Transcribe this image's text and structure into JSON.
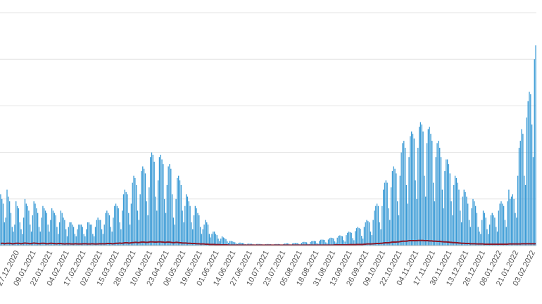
{
  "chart_data": {
    "type": "bar",
    "categories": [
      null,
      null,
      null,
      null,
      null,
      null,
      null,
      null,
      null,
      null,
      null,
      "27.12.2020",
      null,
      null,
      null,
      null,
      null,
      null,
      null,
      null,
      null,
      null,
      null,
      null,
      "09.01.2021",
      null,
      null,
      null,
      null,
      null,
      null,
      null,
      null,
      null,
      null,
      null,
      null,
      "22.01.2021",
      null,
      null,
      null,
      null,
      null,
      null,
      null,
      null,
      null,
      null,
      null,
      null,
      "04.02.2021",
      null,
      null,
      null,
      null,
      null,
      null,
      null,
      null,
      null,
      null,
      null,
      null,
      "17.02.2021",
      null,
      null,
      null,
      null,
      null,
      null,
      null,
      null,
      null,
      null,
      null,
      null,
      "02.03.2021",
      null,
      null,
      null,
      null,
      null,
      null,
      null,
      null,
      null,
      null,
      null,
      null,
      "15.03.2021",
      null,
      null,
      null,
      null,
      null,
      null,
      null,
      null,
      null,
      null,
      null,
      null,
      "28.03.2021",
      null,
      null,
      null,
      null,
      null,
      null,
      null,
      null,
      null,
      null,
      null,
      null,
      "10.04.2021",
      null,
      null,
      null,
      null,
      null,
      null,
      null,
      null,
      null,
      null,
      null,
      null,
      "23.04.2021",
      null,
      null,
      null,
      null,
      null,
      null,
      null,
      null,
      null,
      null,
      null,
      null,
      "06.05.2021",
      null,
      null,
      null,
      null,
      null,
      null,
      null,
      null,
      null,
      null,
      null,
      null,
      "19.05.2021",
      null,
      null,
      null,
      null,
      null,
      null,
      null,
      null,
      null,
      null,
      null,
      null,
      "01.06.2021",
      null,
      null,
      null,
      null,
      null,
      null,
      null,
      null,
      null,
      null,
      null,
      null,
      "14.06.2021",
      null,
      null,
      null,
      null,
      null,
      null,
      null,
      null,
      null,
      null,
      null,
      null,
      "27.06.2021",
      null,
      null,
      null,
      null,
      null,
      null,
      null,
      null,
      null,
      null,
      null,
      null,
      "10.07.2021",
      null,
      null,
      null,
      null,
      null,
      null,
      null,
      null,
      null,
      null,
      null,
      null,
      "23.07.2021",
      null,
      null,
      null,
      null,
      null,
      null,
      null,
      null,
      null,
      null,
      null,
      null,
      "05.08.2021",
      null,
      null,
      null,
      null,
      null,
      null,
      null,
      null,
      null,
      null,
      null,
      null,
      "18.08.2021",
      null,
      null,
      null,
      null,
      null,
      null,
      null,
      null,
      null,
      null,
      null,
      null,
      "31.08.2021",
      null,
      null,
      null,
      null,
      null,
      null,
      null,
      null,
      null,
      null,
      null,
      null,
      "13.09.2021",
      null,
      null,
      null,
      null,
      null,
      null,
      null,
      null,
      null,
      null,
      null,
      null,
      "26.09.2021",
      null,
      null,
      null,
      null,
      null,
      null,
      null,
      null,
      null,
      null,
      null,
      null,
      "09.10.2021",
      null,
      null,
      null,
      null,
      null,
      null,
      null,
      null,
      null,
      null,
      null,
      null,
      "22.10.2021",
      null,
      null,
      null,
      null,
      null,
      null,
      null,
      null,
      null,
      null,
      null,
      null,
      "04.11.2021",
      null,
      null,
      null,
      null,
      null,
      null,
      null,
      null,
      null,
      null,
      null,
      null,
      "17.11.2021",
      null,
      null,
      null,
      null,
      null,
      null,
      null,
      null,
      null,
      null,
      null,
      null,
      "30.11.2021",
      null,
      null,
      null,
      null,
      null,
      null,
      null,
      null,
      null,
      null,
      null,
      null,
      "13.12.2021",
      null,
      null,
      null,
      null,
      null,
      null,
      null,
      null,
      null,
      null,
      null,
      null,
      "26.12.2021",
      null,
      null,
      null,
      null,
      null,
      null,
      null,
      null,
      null,
      null,
      null,
      null,
      "08.01.2022",
      null,
      null,
      null,
      null,
      null,
      null,
      null,
      null,
      null,
      null,
      null,
      null,
      "21.01.2022",
      null,
      null,
      null,
      null,
      null,
      null,
      null,
      null,
      null,
      null,
      null,
      null,
      "03.02.2022",
      null,
      null,
      null,
      null
    ],
    "series": [
      {
        "color": "#3b9bd6",
        "values": [
          22,
          20,
          18,
          10,
          12,
          24,
          21,
          19,
          14,
          8,
          6,
          9,
          19,
          17,
          16,
          10,
          7,
          5,
          12,
          20,
          18,
          17,
          15,
          9,
          6,
          13,
          19,
          18,
          16,
          14,
          8,
          6,
          12,
          17,
          16,
          15,
          14,
          9,
          6,
          11,
          16,
          15,
          14,
          13,
          8,
          5,
          10,
          15,
          14,
          12,
          11,
          7,
          4,
          8,
          10,
          10,
          9,
          8,
          5,
          4,
          7,
          9,
          9,
          9,
          8,
          5,
          4,
          7,
          10,
          10,
          9,
          9,
          5,
          4,
          8,
          11,
          12,
          11,
          11,
          7,
          5,
          9,
          14,
          15,
          14,
          13,
          8,
          6,
          12,
          17,
          18,
          17,
          16,
          10,
          7,
          15,
          22,
          24,
          23,
          22,
          14,
          9,
          18,
          27,
          30,
          29,
          26,
          15,
          11,
          22,
          32,
          34,
          33,
          31,
          19,
          13,
          25,
          38,
          40,
          39,
          36,
          21,
          15,
          28,
          38,
          39,
          37,
          35,
          20,
          14,
          26,
          34,
          35,
          33,
          22,
          12,
          9,
          20,
          29,
          30,
          28,
          26,
          15,
          10,
          17,
          22,
          21,
          19,
          17,
          10,
          7,
          13,
          17,
          16,
          14,
          13,
          8,
          5,
          7,
          9,
          11,
          10,
          9,
          5,
          3.5,
          5,
          6,
          6,
          5,
          4.5,
          3,
          2,
          3,
          4,
          3.5,
          3.2,
          2.8,
          1.8,
          1.2,
          2,
          2,
          1.8,
          1.6,
          1.4,
          0.9,
          0.7,
          1.2,
          1.3,
          1.2,
          1.1,
          1,
          0.6,
          0.5,
          0.8,
          0.9,
          0.8,
          0.8,
          0.7,
          0.5,
          0.4,
          0.7,
          0.8,
          0.7,
          0.7,
          0.6,
          0.4,
          0.3,
          0.6,
          0.7,
          0.7,
          0.6,
          0.6,
          0.4,
          0.3,
          0.6,
          0.7,
          0.7,
          0.7,
          0.6,
          0.4,
          0.3,
          0.7,
          0.9,
          1,
          1,
          0.9,
          0.5,
          0.4,
          0.9,
          1.1,
          1.2,
          1.1,
          1.1,
          0.7,
          0.5,
          1.2,
          1.5,
          1.6,
          1.5,
          1.4,
          0.8,
          0.6,
          1.5,
          1.9,
          2,
          2,
          1.9,
          1.1,
          0.8,
          2,
          2.5,
          2.6,
          2.5,
          2.4,
          1.4,
          1,
          2.6,
          3.2,
          3.4,
          3.3,
          3.1,
          1.8,
          1.3,
          3.4,
          4.2,
          4.4,
          4.2,
          4,
          2.3,
          1.7,
          4.5,
          5.5,
          6,
          5.8,
          5.5,
          3.2,
          2.3,
          6.2,
          7.5,
          8,
          7.6,
          7.2,
          4.2,
          3,
          8,
          10,
          11,
          10.5,
          10,
          6,
          4.5,
          11,
          15,
          17,
          18,
          17,
          10,
          7,
          17,
          24,
          27,
          28,
          27,
          16,
          11,
          25,
          32,
          34,
          33,
          31,
          19,
          13,
          30,
          40,
          44,
          45,
          42,
          26,
          18,
          38,
          47,
          49,
          48,
          46,
          28,
          20,
          42,
          51,
          53,
          52,
          49,
          30,
          21,
          44,
          50,
          51,
          48,
          45,
          27,
          19,
          38,
          44,
          45,
          42,
          38,
          24,
          16,
          32,
          37,
          37,
          35,
          31,
          19,
          13,
          26,
          30,
          29,
          27,
          24,
          15,
          10,
          21,
          24,
          23,
          21,
          18,
          11,
          8,
          16,
          20,
          19,
          17,
          14,
          8,
          6,
          5,
          11,
          15,
          14,
          12,
          7,
          5,
          9,
          13,
          14,
          13,
          12,
          8,
          6,
          15,
          18,
          19,
          18,
          17,
          11,
          8,
          19,
          24,
          20,
          21,
          22,
          20,
          14,
          12,
          30,
          42,
          45,
          50,
          48,
          30,
          26,
          55,
          62,
          66,
          65,
          52,
          38,
          80,
          86
        ]
      },
      {
        "type": "line",
        "color": "#8b1a2b",
        "values": [
          0.9,
          1,
          1,
          0.8,
          0.9,
          1,
          1,
          1,
          0.9,
          0.8,
          0.8,
          0.9,
          1,
          1,
          1,
          0.9,
          0.8,
          0.9,
          1,
          1.1,
          1,
          1,
          0.9,
          0.8,
          0.9,
          1,
          1.1,
          1,
          1,
          0.9,
          0.8,
          0.9,
          1,
          1,
          1,
          0.9,
          0.8,
          0.8,
          0.9,
          1,
          1,
          0.9,
          0.9,
          0.8,
          0.8,
          0.9,
          0.9,
          0.9,
          0.8,
          0.8,
          0.7,
          0.8,
          0.8,
          0.8,
          0.8,
          0.7,
          0.7,
          0.7,
          0.8,
          0.8,
          0.7,
          0.7,
          0.7,
          0.7,
          0.8,
          0.8,
          0.8,
          0.8,
          0.7,
          0.7,
          0.7,
          0.8,
          0.8,
          0.7,
          0.7,
          0.7,
          0.7,
          0.8,
          0.8,
          0.8,
          0.8,
          0.8,
          0.8,
          0.9,
          0.9,
          0.9,
          0.9,
          0.8,
          0.8,
          0.9,
          1,
          1,
          1,
          1.1,
          1,
          1,
          1.1,
          1.2,
          1.2,
          1.2,
          1.1,
          1.1,
          1.2,
          1.3,
          1.3,
          1.4,
          1.4,
          1.3,
          1.3,
          1.4,
          1.5,
          1.5,
          1.5,
          1.4,
          1.4,
          1.4,
          1.5,
          1.6,
          1.6,
          1.6,
          1.5,
          1.5,
          1.5,
          1.6,
          1.6,
          1.6,
          1.5,
          1.5,
          1.4,
          1.4,
          1.5,
          1.5,
          1.5,
          1.4,
          1.3,
          1.3,
          1.3,
          1.4,
          1.4,
          1.3,
          1.2,
          1.2,
          1.1,
          1.1,
          1.1,
          1.1,
          1,
          1,
          1,
          0.9,
          0.9,
          0.9,
          0.9,
          0.8,
          0.8,
          0.8,
          0.7,
          0.7,
          0.7,
          0.7,
          0.6,
          0.6,
          0.6,
          0.5,
          0.5,
          0.5,
          0.5,
          0.5,
          0.4,
          0.4,
          0.4,
          0.4,
          0.3,
          0.3,
          0.3,
          0.3,
          0.3,
          0.3,
          0.2,
          0.2,
          0.2,
          0.2,
          0.2,
          0.2,
          0.2,
          0.2,
          0.2,
          0.2,
          0.2,
          0.2,
          0.2,
          0.2,
          0.2,
          0.2,
          0.2,
          0.2,
          0.2,
          0.2,
          0.2,
          0.2,
          0.2,
          0.2,
          0.2,
          0.2,
          0.2,
          0.2,
          0.2,
          0.2,
          0.2,
          0.2,
          0.2,
          0.2,
          0.2,
          0.2,
          0.2,
          0.2,
          0.2,
          0.2,
          0.2,
          0.2,
          0.2,
          0.2,
          0.2,
          0.2,
          0.2,
          0.2,
          0.2,
          0.2,
          0.2,
          0.2,
          0.2,
          0.2,
          0.2,
          0.2,
          0.2,
          0.2,
          0.2,
          0.2,
          0.2,
          0.2,
          0.2,
          0.2,
          0.2,
          0.2,
          0.2,
          0.2,
          0.2,
          0.2,
          0.2,
          0.2,
          0.2,
          0.2,
          0.2,
          0.2,
          0.2,
          0.2,
          0.2,
          0.2,
          0.2,
          0.2,
          0.2,
          0.3,
          0.3,
          0.3,
          0.3,
          0.3,
          0.3,
          0.3,
          0.3,
          0.3,
          0.3,
          0.3,
          0.4,
          0.4,
          0.4,
          0.4,
          0.4,
          0.4,
          0.5,
          0.5,
          0.5,
          0.5,
          0.5,
          0.5,
          0.6,
          0.6,
          0.7,
          0.7,
          0.7,
          0.7,
          0.7,
          0.8,
          0.8,
          0.9,
          0.9,
          0.9,
          0.9,
          1,
          1,
          1.1,
          1.2,
          1.2,
          1.2,
          1.2,
          1.3,
          1.4,
          1.5,
          1.5,
          1.5,
          1.5,
          1.6,
          1.6,
          1.7,
          1.8,
          1.9,
          1.9,
          1.9,
          1.9,
          2,
          2.1,
          2.1,
          2.1,
          2.1,
          2.1,
          2.1,
          2.1,
          2.2,
          2.2,
          2.2,
          2.2,
          2.2,
          2.1,
          2.1,
          2.1,
          2.1,
          2,
          2,
          2,
          1.9,
          1.9,
          1.9,
          1.8,
          1.8,
          1.8,
          1.7,
          1.7,
          1.6,
          1.6,
          1.6,
          1.5,
          1.5,
          1.4,
          1.4,
          1.3,
          1.3,
          1.3,
          1.2,
          1.2,
          1.1,
          1.1,
          1,
          1,
          1,
          0.9,
          0.9,
          0.9,
          0.9,
          0.8,
          0.8,
          0.8,
          0.8,
          0.8,
          0.7,
          0.7,
          0.7,
          0.7,
          0.7,
          0.7,
          0.6,
          0.6,
          0.6,
          0.6,
          0.6,
          0.6,
          0.6,
          0.6,
          0.6,
          0.6,
          0.6,
          0.6,
          0.6,
          0.6,
          0.6,
          0.6,
          0.6,
          0.6,
          0.6,
          0.7,
          0.7,
          0.7,
          0.7,
          0.7,
          0.7,
          0.7,
          0.7,
          0.7,
          0.7,
          0.8,
          0.8,
          0.8,
          0.8,
          0.8,
          0.8,
          0.8,
          0.8,
          0.8,
          0.8,
          0.8,
          0.8
        ]
      }
    ],
    "ylim": [
      0,
      100
    ],
    "yticks": [
      0,
      20,
      40,
      60,
      80,
      100
    ],
    "grid": true
  }
}
